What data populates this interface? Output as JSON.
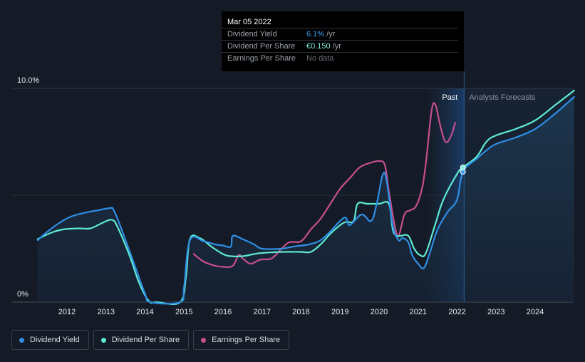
{
  "tooltip": {
    "date": "Mar 05 2022",
    "rows": [
      {
        "label": "Dividend Yield",
        "value": "6.1%",
        "unit": " /yr",
        "color": "#3aa1f0"
      },
      {
        "label": "Dividend Per Share",
        "value": "€0.150",
        "unit": " /yr",
        "color": "#7ff0dc"
      },
      {
        "label": "Earnings Per Share",
        "value": "No data",
        "unit": "",
        "color": "#6b717b"
      }
    ]
  },
  "legend": [
    {
      "label": "Dividend Yield",
      "color": "#2e8ee6"
    },
    {
      "label": "Dividend Per Share",
      "color": "#5eead4"
    },
    {
      "label": "Earnings Per Share",
      "color": "#c74e8e"
    }
  ],
  "chart_data": {
    "type": "line",
    "title": "",
    "xlabel": "",
    "ylabel": "",
    "y_axis_labels": [
      "10.0%",
      "0%"
    ],
    "ylim": [
      0,
      10
    ],
    "xlim": [
      2011.25,
      2025.0
    ],
    "x_ticks": [
      "2012",
      "2013",
      "2014",
      "2015",
      "2016",
      "2017",
      "2018",
      "2019",
      "2020",
      "2021",
      "2022",
      "2023",
      "2024"
    ],
    "past_label": "Past",
    "forecast_label": "Analysts Forecasts",
    "past_start": 2021.2,
    "divider_x": 2022.18,
    "series": [
      {
        "name": "Dividend Yield",
        "color": "#2e8ee6",
        "points": [
          [
            2011.25,
            2.9
          ],
          [
            2011.5,
            3.3
          ],
          [
            2011.8,
            3.7
          ],
          [
            2012.1,
            4.0
          ],
          [
            2012.5,
            4.2
          ],
          [
            2012.8,
            4.3
          ],
          [
            2013.1,
            4.4
          ],
          [
            2013.2,
            4.3
          ],
          [
            2013.4,
            3.4
          ],
          [
            2013.7,
            1.9
          ],
          [
            2014.0,
            0.4
          ],
          [
            2014.15,
            0.0
          ],
          [
            2014.9,
            0.0
          ],
          [
            2015.0,
            0.7
          ],
          [
            2015.15,
            2.9
          ],
          [
            2015.5,
            2.85
          ],
          [
            2015.8,
            2.7
          ],
          [
            2016.0,
            2.65
          ],
          [
            2016.2,
            2.6
          ],
          [
            2016.25,
            3.1
          ],
          [
            2016.5,
            2.95
          ],
          [
            2016.8,
            2.7
          ],
          [
            2017.0,
            2.5
          ],
          [
            2017.5,
            2.5
          ],
          [
            2017.8,
            2.6
          ],
          [
            2018.2,
            2.7
          ],
          [
            2018.5,
            2.9
          ],
          [
            2018.8,
            3.4
          ],
          [
            2019.0,
            3.8
          ],
          [
            2019.15,
            3.95
          ],
          [
            2019.25,
            3.6
          ],
          [
            2019.55,
            4.1
          ],
          [
            2019.8,
            3.8
          ],
          [
            2019.95,
            4.7
          ],
          [
            2020.1,
            6.0
          ],
          [
            2020.2,
            5.6
          ],
          [
            2020.35,
            3.6
          ],
          [
            2020.5,
            2.9
          ],
          [
            2020.6,
            3.0
          ],
          [
            2020.75,
            2.8
          ],
          [
            2020.85,
            2.2
          ],
          [
            2021.0,
            1.8
          ],
          [
            2021.15,
            1.6
          ],
          [
            2021.3,
            2.3
          ],
          [
            2021.5,
            3.4
          ],
          [
            2021.75,
            4.2
          ],
          [
            2022.0,
            4.8
          ],
          [
            2022.15,
            6.1
          ],
          [
            2022.5,
            6.7
          ],
          [
            2022.75,
            7.1
          ],
          [
            2023.0,
            7.4
          ],
          [
            2023.5,
            7.7
          ],
          [
            2024.0,
            8.1
          ],
          [
            2024.5,
            8.8
          ],
          [
            2025.0,
            9.6
          ]
        ]
      },
      {
        "name": "Dividend Per Share",
        "color": "#5eead4",
        "points": [
          [
            2011.25,
            2.95
          ],
          [
            2011.6,
            3.25
          ],
          [
            2011.9,
            3.4
          ],
          [
            2012.3,
            3.45
          ],
          [
            2012.6,
            3.45
          ],
          [
            2012.9,
            3.7
          ],
          [
            2013.15,
            3.85
          ],
          [
            2013.3,
            3.5
          ],
          [
            2013.6,
            2.2
          ],
          [
            2013.85,
            0.9
          ],
          [
            2014.1,
            0.05
          ],
          [
            2014.3,
            0.0
          ],
          [
            2014.9,
            0.0
          ],
          [
            2015.05,
            1.2
          ],
          [
            2015.15,
            2.95
          ],
          [
            2015.4,
            3.0
          ],
          [
            2015.7,
            2.6
          ],
          [
            2016.0,
            2.25
          ],
          [
            2016.2,
            2.15
          ],
          [
            2016.5,
            2.15
          ],
          [
            2016.8,
            2.25
          ],
          [
            2017.0,
            2.3
          ],
          [
            2017.5,
            2.35
          ],
          [
            2018.0,
            2.35
          ],
          [
            2018.25,
            2.35
          ],
          [
            2018.5,
            2.7
          ],
          [
            2018.75,
            3.2
          ],
          [
            2019.0,
            3.6
          ],
          [
            2019.15,
            3.75
          ],
          [
            2019.35,
            3.8
          ],
          [
            2019.45,
            4.6
          ],
          [
            2019.7,
            4.6
          ],
          [
            2020.0,
            4.6
          ],
          [
            2020.25,
            4.6
          ],
          [
            2020.35,
            3.4
          ],
          [
            2020.45,
            3.1
          ],
          [
            2020.55,
            3.1
          ],
          [
            2020.75,
            3.1
          ],
          [
            2020.9,
            2.5
          ],
          [
            2021.05,
            2.2
          ],
          [
            2021.2,
            2.3
          ],
          [
            2021.45,
            3.7
          ],
          [
            2021.65,
            4.8
          ],
          [
            2022.0,
            6.0
          ],
          [
            2022.15,
            6.3
          ],
          [
            2022.5,
            6.8
          ],
          [
            2022.75,
            7.5
          ],
          [
            2023.0,
            7.8
          ],
          [
            2023.5,
            8.1
          ],
          [
            2024.0,
            8.5
          ],
          [
            2024.5,
            9.2
          ],
          [
            2025.0,
            9.9
          ]
        ]
      },
      {
        "name": "Earnings Per Share",
        "color": "#c74e8e",
        "points": [
          [
            2015.25,
            2.25
          ],
          [
            2015.5,
            1.9
          ],
          [
            2015.8,
            1.7
          ],
          [
            2016.0,
            1.65
          ],
          [
            2016.25,
            1.7
          ],
          [
            2016.4,
            2.2
          ],
          [
            2016.5,
            2.05
          ],
          [
            2016.7,
            1.8
          ],
          [
            2016.9,
            1.95
          ],
          [
            2017.0,
            2.0
          ],
          [
            2017.25,
            2.05
          ],
          [
            2017.5,
            2.5
          ],
          [
            2017.7,
            2.8
          ],
          [
            2018.0,
            2.85
          ],
          [
            2018.25,
            3.4
          ],
          [
            2018.5,
            3.9
          ],
          [
            2018.75,
            4.6
          ],
          [
            2019.0,
            5.3
          ],
          [
            2019.25,
            5.8
          ],
          [
            2019.5,
            6.3
          ],
          [
            2019.75,
            6.5
          ],
          [
            2020.0,
            6.6
          ],
          [
            2020.15,
            6.4
          ],
          [
            2020.25,
            5.2
          ],
          [
            2020.4,
            3.6
          ],
          [
            2020.5,
            3.1
          ],
          [
            2020.65,
            4.1
          ],
          [
            2020.8,
            4.3
          ],
          [
            2020.95,
            4.5
          ],
          [
            2021.1,
            5.3
          ],
          [
            2021.2,
            6.5
          ],
          [
            2021.35,
            9.0
          ],
          [
            2021.45,
            9.2
          ],
          [
            2021.55,
            8.4
          ],
          [
            2021.7,
            7.5
          ],
          [
            2021.85,
            7.8
          ],
          [
            2021.95,
            8.4
          ]
        ]
      }
    ],
    "highlight_x": 2022.15,
    "highlight_values": [
      6.1,
      6.3
    ]
  }
}
